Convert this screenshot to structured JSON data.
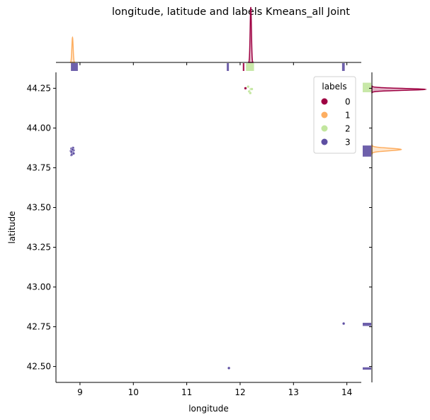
{
  "figure": {
    "title": "longitude, latitude and labels Kmeans_all Joint"
  },
  "chart_data": {
    "type": "scatter",
    "subtype": "jointplot",
    "title": "longitude, latitude and labels Kmeans_all Joint",
    "xlabel": "longitude",
    "ylabel": "latitude",
    "xlim": [
      8.55,
      14.27
    ],
    "ylim": [
      42.4,
      44.35
    ],
    "xticks": [
      9,
      10,
      11,
      12,
      13,
      14
    ],
    "yticks": [
      42.5,
      42.75,
      43.0,
      43.25,
      43.5,
      43.75,
      44.0,
      44.25
    ],
    "xtick_labels": [
      "9",
      "10",
      "11",
      "12",
      "13",
      "14"
    ],
    "ytick_labels": [
      "42.50",
      "42.75",
      "43.00",
      "43.25",
      "43.50",
      "43.75",
      "44.00",
      "44.25"
    ],
    "grid": false,
    "legend": {
      "title": "labels",
      "position": "top-right"
    },
    "series": [
      {
        "name": "0",
        "color": "#9e0142",
        "points": [
          [
            12.1,
            44.25
          ]
        ]
      },
      {
        "name": "1",
        "color": "#fdae61",
        "points": [
          [
            8.86,
            43.87
          ],
          [
            8.87,
            43.86
          ]
        ]
      },
      {
        "name": "2",
        "color": "#c2e69e",
        "points": [
          [
            12.15,
            44.26
          ],
          [
            12.2,
            44.245
          ],
          [
            12.17,
            44.23
          ],
          [
            12.19,
            44.22
          ],
          [
            12.22,
            44.245
          ]
        ]
      },
      {
        "name": "3",
        "color": "#5e4fa2",
        "points": [
          [
            8.84,
            43.87
          ],
          [
            8.85,
            43.86
          ],
          [
            8.86,
            43.855
          ],
          [
            8.87,
            43.85
          ],
          [
            8.85,
            43.845
          ],
          [
            8.86,
            43.84
          ],
          [
            8.84,
            43.83
          ],
          [
            8.88,
            43.86
          ],
          [
            8.87,
            43.875
          ],
          [
            8.83,
            43.855
          ],
          [
            8.86,
            43.865
          ],
          [
            8.85,
            43.835
          ],
          [
            8.87,
            43.845
          ],
          [
            8.84,
            43.85
          ],
          [
            8.88,
            43.84
          ],
          [
            13.94,
            42.77
          ],
          [
            11.79,
            42.49
          ]
        ]
      }
    ],
    "marginal_x": {
      "kde": [
        {
          "series": "0",
          "color": "#9e0142",
          "center": 12.2,
          "width": 0.012,
          "height": 1.0
        },
        {
          "series": "1",
          "color": "#fdae61",
          "center": 8.86,
          "width": 0.012,
          "height": 0.45
        }
      ],
      "bars": [
        {
          "series": "3",
          "color": "#5e4fa2",
          "x0": 8.83,
          "x1": 8.96
        },
        {
          "series": "3",
          "color": "#5e4fa2",
          "x0": 11.75,
          "x1": 11.79
        },
        {
          "series": "0",
          "color": "#9e0142",
          "x0": 12.05,
          "x1": 12.08
        },
        {
          "series": "2",
          "color": "#c2e69e",
          "x0": 12.11,
          "x1": 12.26
        },
        {
          "series": "3",
          "color": "#5e4fa2",
          "x0": 13.91,
          "x1": 13.96
        }
      ]
    },
    "marginal_y": {
      "kde": [
        {
          "series": "0",
          "color": "#9e0142",
          "center": 44.243,
          "width": 0.006,
          "height": 1.0
        },
        {
          "series": "1",
          "color": "#fdae61",
          "center": 43.865,
          "width": 0.008,
          "height": 0.55
        }
      ],
      "bars": [
        {
          "series": "2",
          "color": "#c2e69e",
          "y0": 44.225,
          "y1": 44.285
        },
        {
          "series": "3",
          "color": "#5e4fa2",
          "y0": 43.82,
          "y1": 43.89
        },
        {
          "series": "3",
          "color": "#5e4fa2",
          "y0": 42.755,
          "y1": 42.775
        },
        {
          "series": "3",
          "color": "#5e4fa2",
          "y0": 42.48,
          "y1": 42.495
        }
      ]
    }
  }
}
